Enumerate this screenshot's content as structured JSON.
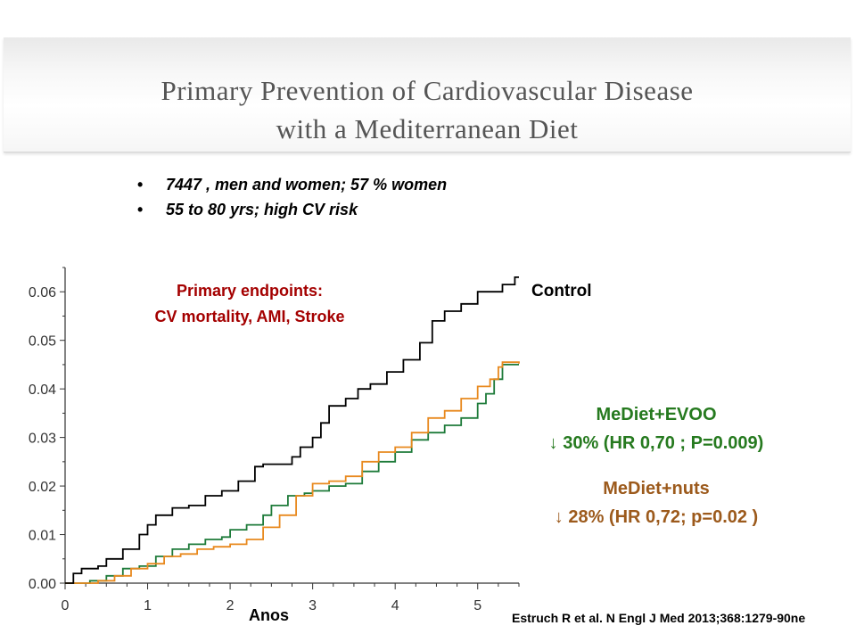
{
  "title": {
    "line1": "Primary Prevention of Cardiovascular Disease",
    "line2": "with a Mediterranean Diet"
  },
  "bullets": [
    "7447 , men and women; 57 % women",
    "55 to 80 yrs; high CV risk"
  ],
  "endpoints": {
    "line1": "Primary endpoints:",
    "line2": "CV mortality, AMI, Stroke"
  },
  "annotations": {
    "evoo_name": "MeDiet+EVOO",
    "evoo_stat": "↓ 30% (HR 0,70 ; P=0.009)",
    "nuts_name": "MeDiet+nuts",
    "nuts_stat": "↓ 28% (HR 0,72; p=0.02 )"
  },
  "citation": "Estruch  R et al. N Engl J Med 2013;368:1279-90ne",
  "colors": {
    "control": "#000000",
    "evoo": "#1e7b3a",
    "nuts": "#e8891e",
    "endpoints_text": "#a40000",
    "evoo_text": "#267a1f",
    "nuts_text": "#9c5a1c"
  },
  "chart_data": {
    "type": "line",
    "xlabel": "Anos",
    "ylabel": "",
    "xlim": [
      0,
      5.5
    ],
    "ylim": [
      0,
      0.065
    ],
    "x_ticks": [
      "0",
      "1",
      "2",
      "3",
      "4",
      "5"
    ],
    "y_ticks": [
      "0.00",
      "0.01",
      "0.02",
      "0.03",
      "0.04",
      "0.05",
      "0.06"
    ],
    "series": [
      {
        "name": "Control",
        "color": "#000000",
        "points": [
          [
            0,
            0
          ],
          [
            0.1,
            0.002
          ],
          [
            0.2,
            0.003
          ],
          [
            0.4,
            0.0035
          ],
          [
            0.5,
            0.005
          ],
          [
            0.7,
            0.007
          ],
          [
            0.9,
            0.01
          ],
          [
            1.0,
            0.012
          ],
          [
            1.1,
            0.014
          ],
          [
            1.3,
            0.0155
          ],
          [
            1.5,
            0.016
          ],
          [
            1.7,
            0.018
          ],
          [
            1.9,
            0.019
          ],
          [
            2.1,
            0.021
          ],
          [
            2.3,
            0.024
          ],
          [
            2.4,
            0.0245
          ],
          [
            2.6,
            0.0245
          ],
          [
            2.75,
            0.026
          ],
          [
            2.85,
            0.028
          ],
          [
            3.0,
            0.03
          ],
          [
            3.1,
            0.033
          ],
          [
            3.2,
            0.0365
          ],
          [
            3.4,
            0.038
          ],
          [
            3.55,
            0.04
          ],
          [
            3.7,
            0.041
          ],
          [
            3.9,
            0.0435
          ],
          [
            4.1,
            0.046
          ],
          [
            4.3,
            0.0495
          ],
          [
            4.45,
            0.054
          ],
          [
            4.6,
            0.056
          ],
          [
            4.8,
            0.0575
          ],
          [
            5.0,
            0.06
          ],
          [
            5.3,
            0.0615
          ],
          [
            5.45,
            0.063
          ],
          [
            5.5,
            0.063
          ]
        ]
      },
      {
        "name": "MeDiet+EVOO",
        "color": "#1e7b3a",
        "points": [
          [
            0,
            0
          ],
          [
            0.3,
            0.0005
          ],
          [
            0.5,
            0.0015
          ],
          [
            0.7,
            0.003
          ],
          [
            0.9,
            0.0035
          ],
          [
            1.1,
            0.0055
          ],
          [
            1.3,
            0.007
          ],
          [
            1.5,
            0.008
          ],
          [
            1.7,
            0.009
          ],
          [
            1.9,
            0.0095
          ],
          [
            2.0,
            0.011
          ],
          [
            2.2,
            0.012
          ],
          [
            2.4,
            0.014
          ],
          [
            2.5,
            0.016
          ],
          [
            2.7,
            0.018
          ],
          [
            2.9,
            0.0185
          ],
          [
            3.0,
            0.019
          ],
          [
            3.2,
            0.02
          ],
          [
            3.4,
            0.0205
          ],
          [
            3.6,
            0.023
          ],
          [
            3.8,
            0.025
          ],
          [
            4.0,
            0.027
          ],
          [
            4.2,
            0.0295
          ],
          [
            4.4,
            0.031
          ],
          [
            4.6,
            0.0325
          ],
          [
            4.8,
            0.034
          ],
          [
            5.0,
            0.037
          ],
          [
            5.1,
            0.039
          ],
          [
            5.2,
            0.042
          ],
          [
            5.3,
            0.045
          ],
          [
            5.5,
            0.045
          ]
        ]
      },
      {
        "name": "MeDiet+nuts",
        "color": "#e8891e",
        "points": [
          [
            0,
            0
          ],
          [
            0.4,
            0.0005
          ],
          [
            0.6,
            0.0015
          ],
          [
            0.8,
            0.003
          ],
          [
            1.0,
            0.004
          ],
          [
            1.2,
            0.0055
          ],
          [
            1.4,
            0.006
          ],
          [
            1.6,
            0.007
          ],
          [
            1.8,
            0.0075
          ],
          [
            2.0,
            0.008
          ],
          [
            2.2,
            0.009
          ],
          [
            2.4,
            0.0115
          ],
          [
            2.6,
            0.014
          ],
          [
            2.8,
            0.018
          ],
          [
            3.0,
            0.0205
          ],
          [
            3.2,
            0.021
          ],
          [
            3.4,
            0.022
          ],
          [
            3.6,
            0.025
          ],
          [
            3.8,
            0.027
          ],
          [
            4.0,
            0.028
          ],
          [
            4.2,
            0.031
          ],
          [
            4.4,
            0.034
          ],
          [
            4.6,
            0.0355
          ],
          [
            4.8,
            0.038
          ],
          [
            5.0,
            0.0405
          ],
          [
            5.15,
            0.042
          ],
          [
            5.25,
            0.0445
          ],
          [
            5.3,
            0.0455
          ],
          [
            5.5,
            0.0452
          ]
        ]
      }
    ]
  }
}
